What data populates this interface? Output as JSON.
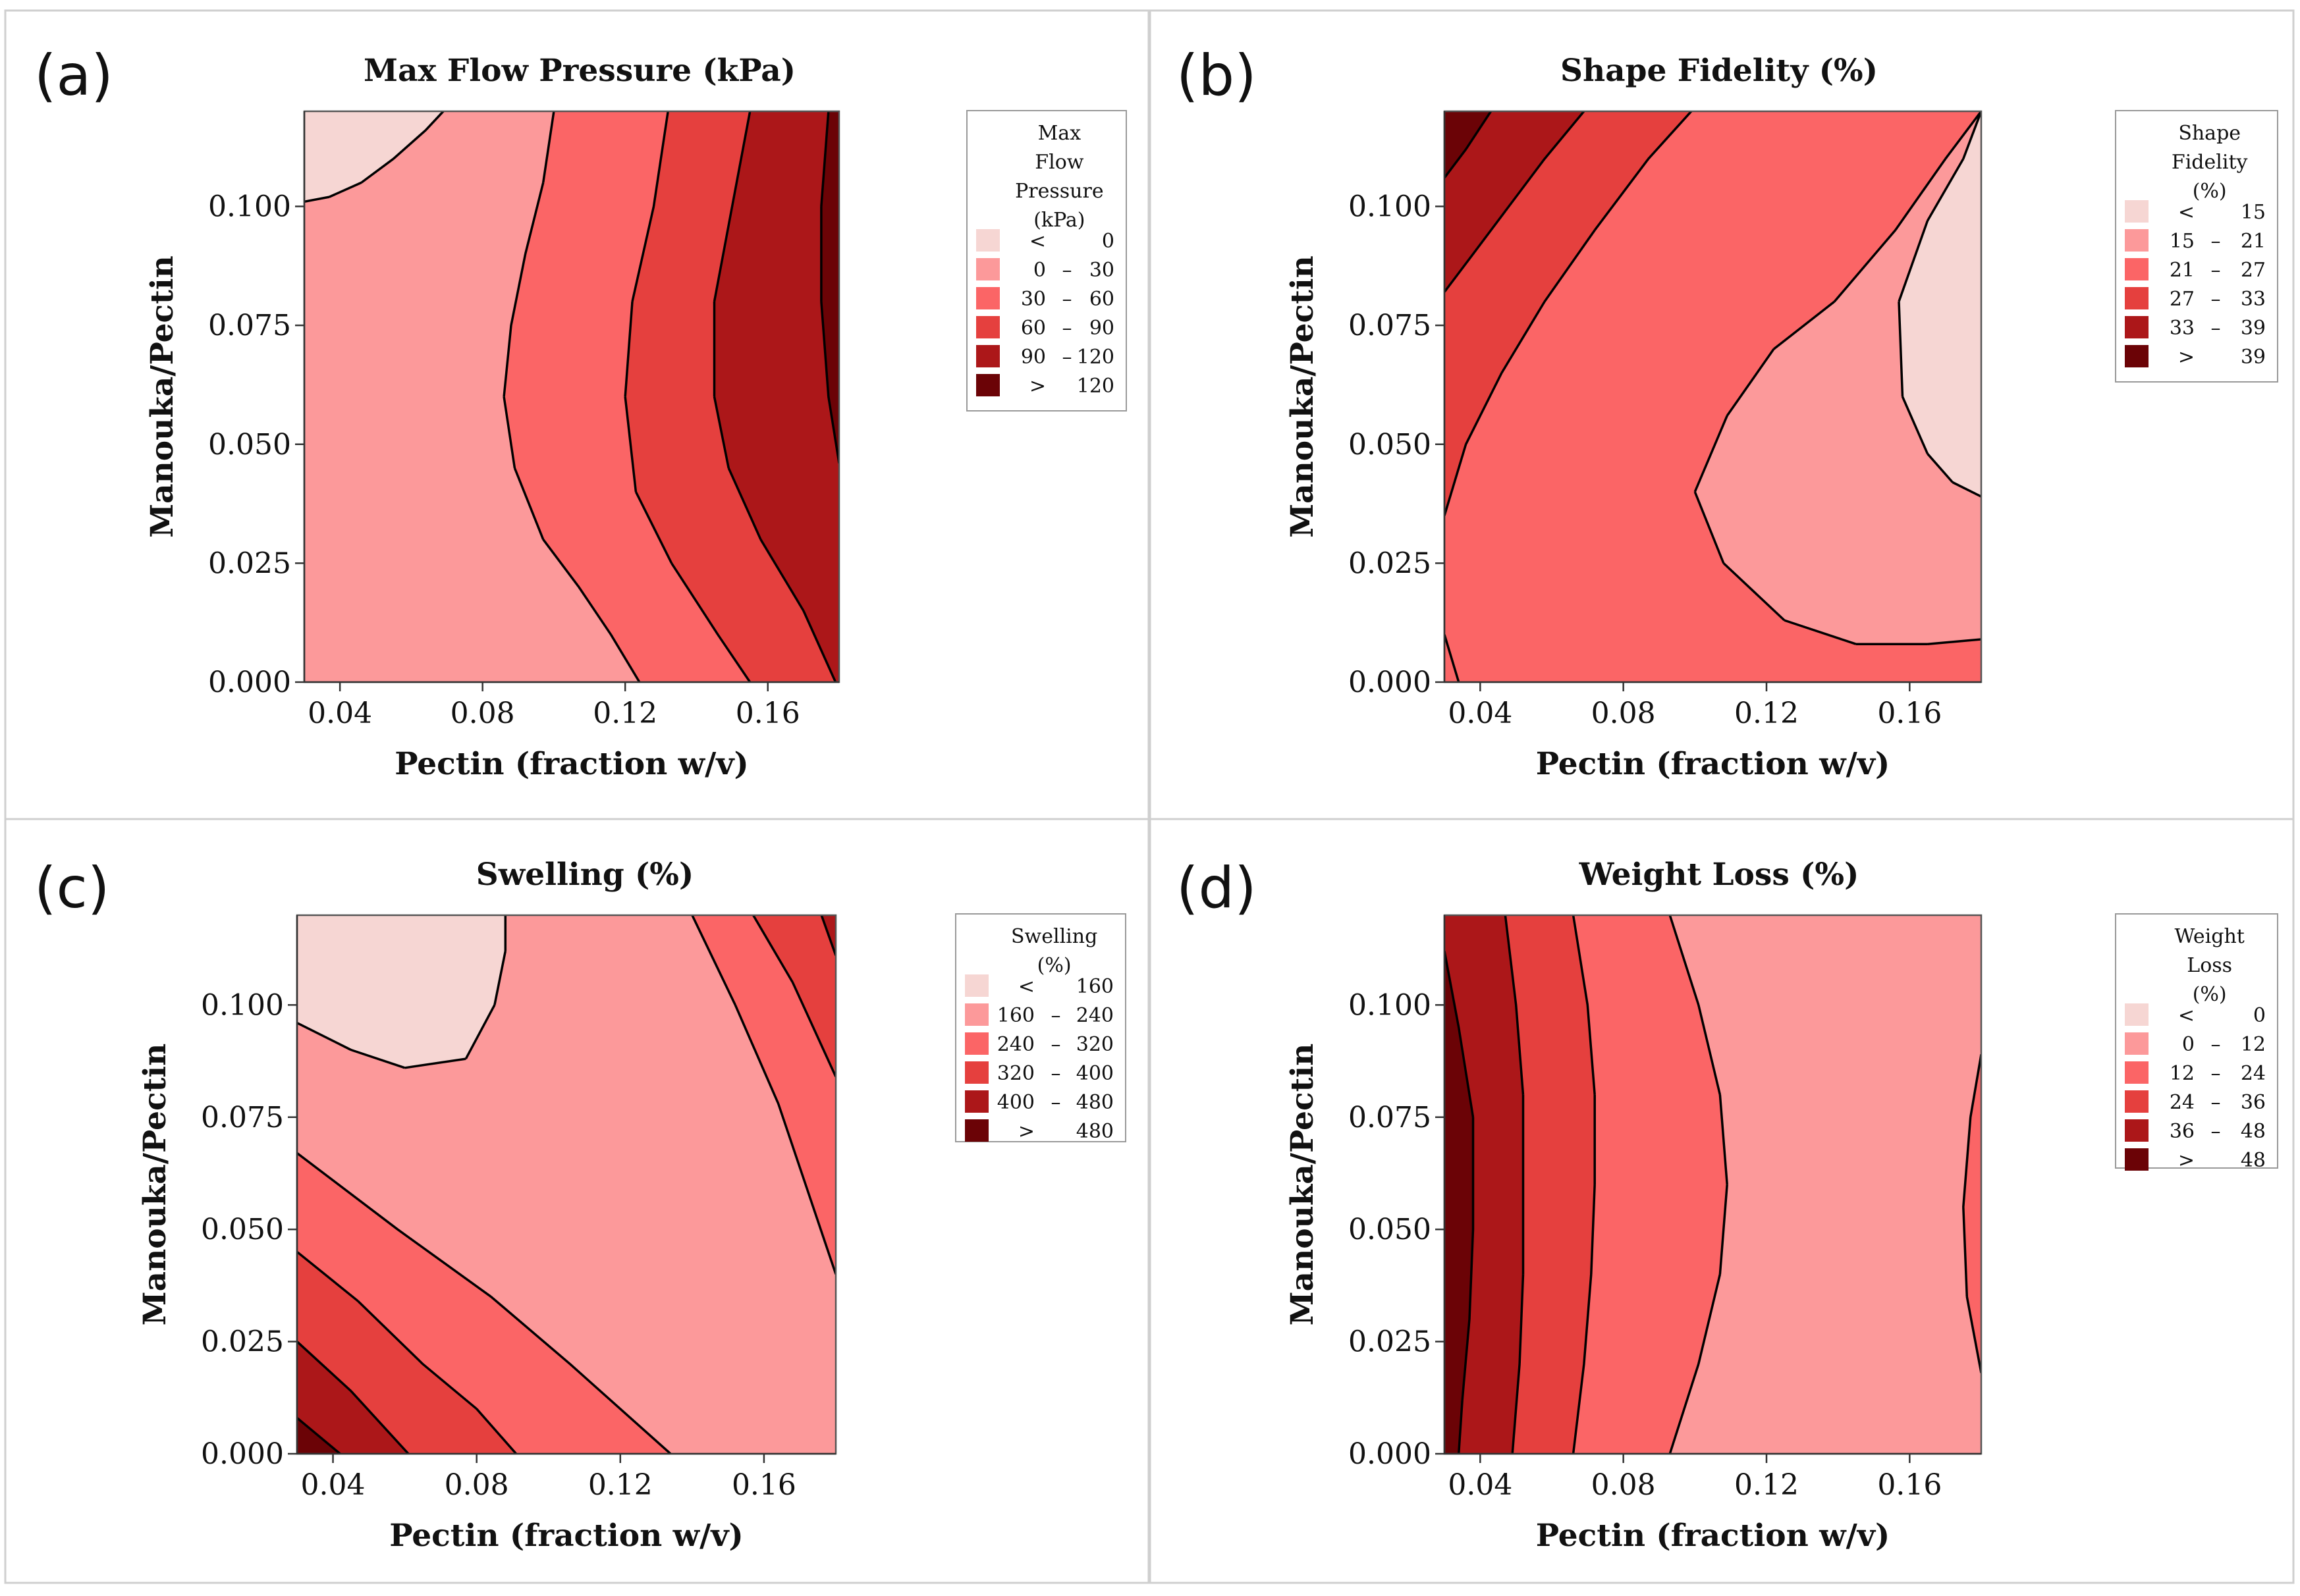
{
  "colors": {
    "level1": "#f6d6d3",
    "level2": "#fc999a",
    "level3": "#fb6566",
    "level4": "#e5403e",
    "level5": "#ac1719",
    "level6": "#6b0306",
    "panel_border": "#cfcfcf"
  },
  "chart_data": [
    {
      "panel": "(a)",
      "type": "contour",
      "title": "Max Flow Pressure  (kPa)",
      "xlabel": "Pectin (fraction w/v)",
      "ylabel": "Manouka/Pectin",
      "xlim": [
        0.03,
        0.18
      ],
      "ylim": [
        0.0,
        0.12
      ],
      "xticks": [
        "0.04",
        "0.08",
        "0.12",
        "0.16"
      ],
      "xtick_values": [
        0.04,
        0.08,
        0.12,
        0.16
      ],
      "yticks": [
        "0.000",
        "0.025",
        "0.050",
        "0.075",
        "0.100"
      ],
      "ytick_values": [
        0.0,
        0.025,
        0.05,
        0.075,
        0.1
      ],
      "legend": {
        "title": [
          "Max",
          "Flow",
          "Pressure",
          "(kPa)"
        ],
        "entries": [
          {
            "lo": "<",
            "hi": "0"
          },
          {
            "lo": "0",
            "dash": "–",
            "hi": "30"
          },
          {
            "lo": "30",
            "dash": "–",
            "hi": "60"
          },
          {
            "lo": "60",
            "dash": "–",
            "hi": "90"
          },
          {
            "lo": "90",
            "dash": "–",
            "hi": "120"
          },
          {
            "lo": ">",
            "hi": "120"
          }
        ]
      },
      "base_level": 2,
      "regions": [
        {
          "level": 1,
          "points": [
            [
              0.03,
              0.12
            ],
            [
              0.03,
              0.101
            ],
            [
              0.037,
              0.102
            ],
            [
              0.046,
              0.105
            ],
            [
              0.055,
              0.11
            ],
            [
              0.064,
              0.116
            ],
            [
              0.069,
              0.12
            ]
          ]
        },
        {
          "level": 3,
          "points": [
            [
              0.1,
              0.12
            ],
            [
              0.097,
              0.105
            ],
            [
              0.092,
              0.09
            ],
            [
              0.088,
              0.075
            ],
            [
              0.086,
              0.06
            ],
            [
              0.089,
              0.045
            ],
            [
              0.097,
              0.03
            ],
            [
              0.107,
              0.02
            ],
            [
              0.116,
              0.01
            ],
            [
              0.124,
              0.0
            ],
            [
              0.18,
              0.0
            ],
            [
              0.18,
              0.12
            ]
          ]
        },
        {
          "level": 4,
          "points": [
            [
              0.132,
              0.12
            ],
            [
              0.128,
              0.1
            ],
            [
              0.122,
              0.08
            ],
            [
              0.12,
              0.06
            ],
            [
              0.123,
              0.04
            ],
            [
              0.133,
              0.025
            ],
            [
              0.146,
              0.01
            ],
            [
              0.155,
              0.0
            ],
            [
              0.18,
              0.0
            ],
            [
              0.18,
              0.12
            ]
          ]
        },
        {
          "level": 5,
          "points": [
            [
              0.155,
              0.12
            ],
            [
              0.15,
              0.1
            ],
            [
              0.145,
              0.08
            ],
            [
              0.145,
              0.06
            ],
            [
              0.149,
              0.045
            ],
            [
              0.158,
              0.03
            ],
            [
              0.17,
              0.015
            ],
            [
              0.179,
              0.0
            ],
            [
              0.18,
              0.0
            ],
            [
              0.18,
              0.12
            ]
          ]
        },
        {
          "level": 6,
          "points": [
            [
              0.177,
              0.12
            ],
            [
              0.175,
              0.1
            ],
            [
              0.175,
              0.08
            ],
            [
              0.177,
              0.06
            ],
            [
              0.18,
              0.046
            ],
            [
              0.18,
              0.12
            ]
          ]
        }
      ]
    },
    {
      "panel": "(b)",
      "type": "contour",
      "title": "Shape Fidelity (%)",
      "xlabel": "Pectin (fraction w/v)",
      "ylabel": "Manouka/Pectin",
      "xlim": [
        0.03,
        0.18
      ],
      "ylim": [
        0.0,
        0.12
      ],
      "xticks": [
        "0.04",
        "0.08",
        "0.12",
        "0.16"
      ],
      "xtick_values": [
        0.04,
        0.08,
        0.12,
        0.16
      ],
      "yticks": [
        "0.000",
        "0.025",
        "0.050",
        "0.075",
        "0.100"
      ],
      "ytick_values": [
        0.0,
        0.025,
        0.05,
        0.075,
        0.1
      ],
      "legend": {
        "title": [
          "Shape",
          "Fidelity",
          "(%)"
        ],
        "entries": [
          {
            "lo": "<",
            "hi": "15"
          },
          {
            "lo": "15",
            "dash": "–",
            "hi": "21"
          },
          {
            "lo": "21",
            "dash": "–",
            "hi": "27"
          },
          {
            "lo": "27",
            "dash": "–",
            "hi": "33"
          },
          {
            "lo": "33",
            "dash": "–",
            "hi": "39"
          },
          {
            "lo": ">",
            "hi": "39"
          }
        ]
      },
      "base_level": 3,
      "regions": [
        {
          "level": 4,
          "points": [
            [
              0.03,
              0.035
            ],
            [
              0.036,
              0.05
            ],
            [
              0.046,
              0.065
            ],
            [
              0.058,
              0.08
            ],
            [
              0.072,
              0.095
            ],
            [
              0.087,
              0.11
            ],
            [
              0.099,
              0.12
            ],
            [
              0.03,
              0.12
            ]
          ]
        },
        {
          "level": 5,
          "points": [
            [
              0.03,
              0.082
            ],
            [
              0.038,
              0.09
            ],
            [
              0.048,
              0.1
            ],
            [
              0.058,
              0.11
            ],
            [
              0.069,
              0.12
            ],
            [
              0.03,
              0.12
            ]
          ]
        },
        {
          "level": 6,
          "points": [
            [
              0.03,
              0.106
            ],
            [
              0.036,
              0.112
            ],
            [
              0.043,
              0.12
            ],
            [
              0.03,
              0.12
            ]
          ]
        },
        {
          "level": 3,
          "points": [
            [
              0.03,
              0.01
            ],
            [
              0.034,
              0.0
            ],
            [
              0.03,
              0.0
            ]
          ]
        },
        {
          "level": 2,
          "points": [
            [
              0.18,
              0.12
            ],
            [
              0.17,
              0.11
            ],
            [
              0.156,
              0.095
            ],
            [
              0.139,
              0.08
            ],
            [
              0.122,
              0.07
            ],
            [
              0.109,
              0.056
            ],
            [
              0.1,
              0.04
            ],
            [
              0.108,
              0.025
            ],
            [
              0.125,
              0.013
            ],
            [
              0.145,
              0.008
            ],
            [
              0.165,
              0.008
            ],
            [
              0.18,
              0.009
            ]
          ]
        },
        {
          "level": 1,
          "points": [
            [
              0.18,
              0.12
            ],
            [
              0.175,
              0.11
            ],
            [
              0.165,
              0.097
            ],
            [
              0.157,
              0.08
            ],
            [
              0.158,
              0.06
            ],
            [
              0.165,
              0.048
            ],
            [
              0.172,
              0.042
            ],
            [
              0.18,
              0.039
            ]
          ]
        }
      ]
    },
    {
      "panel": "(c)",
      "type": "contour",
      "title": "Swelling (%)",
      "xlabel": "Pectin (fraction w/v)",
      "ylabel": "Manouka/Pectin",
      "xlim": [
        0.03,
        0.18
      ],
      "ylim": [
        0.0,
        0.12
      ],
      "xticks": [
        "0.04",
        "0.08",
        "0.12",
        "0.16"
      ],
      "xtick_values": [
        0.04,
        0.08,
        0.12,
        0.16
      ],
      "yticks": [
        "0.000",
        "0.025",
        "0.050",
        "0.075",
        "0.100"
      ],
      "ytick_values": [
        0.0,
        0.025,
        0.05,
        0.075,
        0.1
      ],
      "legend": {
        "title": [
          "Swelling",
          "(%)"
        ],
        "entries": [
          {
            "lo": "<",
            "hi": "160"
          },
          {
            "lo": "160",
            "dash": "–",
            "hi": "240"
          },
          {
            "lo": "240",
            "dash": "–",
            "hi": "320"
          },
          {
            "lo": "320",
            "dash": "–",
            "hi": "400"
          },
          {
            "lo": "400",
            "dash": "–",
            "hi": "480"
          },
          {
            "lo": ">",
            "hi": "480"
          }
        ]
      },
      "base_level": 2,
      "regions": [
        {
          "level": 1,
          "points": [
            [
              0.03,
              0.12
            ],
            [
              0.03,
              0.096
            ],
            [
              0.045,
              0.09
            ],
            [
              0.06,
              0.086
            ],
            [
              0.077,
              0.088
            ],
            [
              0.085,
              0.1
            ],
            [
              0.088,
              0.112
            ],
            [
              0.088,
              0.12
            ]
          ]
        },
        {
          "level": 3,
          "points": [
            [
              0.03,
              0.067
            ],
            [
              0.058,
              0.05
            ],
            [
              0.084,
              0.035
            ],
            [
              0.106,
              0.02
            ],
            [
              0.134,
              0.0
            ],
            [
              0.03,
              0.0
            ]
          ]
        },
        {
          "level": 4,
          "points": [
            [
              0.03,
              0.045
            ],
            [
              0.047,
              0.034
            ],
            [
              0.065,
              0.02
            ],
            [
              0.08,
              0.01
            ],
            [
              0.091,
              0.0
            ],
            [
              0.03,
              0.0
            ]
          ]
        },
        {
          "level": 5,
          "points": [
            [
              0.03,
              0.025
            ],
            [
              0.045,
              0.014
            ],
            [
              0.061,
              0.0
            ],
            [
              0.03,
              0.0
            ]
          ]
        },
        {
          "level": 6,
          "points": [
            [
              0.03,
              0.008
            ],
            [
              0.042,
              0.0
            ],
            [
              0.03,
              0.0
            ]
          ]
        },
        {
          "level": 3,
          "points": [
            [
              0.14,
              0.12
            ],
            [
              0.152,
              0.1
            ],
            [
              0.164,
              0.078
            ],
            [
              0.18,
              0.04
            ],
            [
              0.18,
              0.12
            ]
          ]
        },
        {
          "level": 4,
          "points": [
            [
              0.157,
              0.12
            ],
            [
              0.168,
              0.105
            ],
            [
              0.18,
              0.084
            ],
            [
              0.18,
              0.12
            ]
          ]
        },
        {
          "level": 5,
          "points": [
            [
              0.176,
              0.12
            ],
            [
              0.18,
              0.111
            ],
            [
              0.18,
              0.12
            ]
          ]
        }
      ]
    },
    {
      "panel": "(d)",
      "type": "contour",
      "title": "Weight Loss (%)",
      "xlabel": "Pectin (fraction w/v)",
      "ylabel": "Manouka/Pectin",
      "xlim": [
        0.03,
        0.18
      ],
      "ylim": [
        0.0,
        0.12
      ],
      "xticks": [
        "0.04",
        "0.08",
        "0.12",
        "0.16"
      ],
      "xtick_values": [
        0.04,
        0.08,
        0.12,
        0.16
      ],
      "yticks": [
        "0.000",
        "0.025",
        "0.050",
        "0.075",
        "0.100"
      ],
      "ytick_values": [
        0.0,
        0.025,
        0.05,
        0.075,
        0.1
      ],
      "legend": {
        "title": [
          "Weight",
          "Loss",
          "(%)"
        ],
        "entries": [
          {
            "lo": "<",
            "hi": "0"
          },
          {
            "lo": "0",
            "dash": "–",
            "hi": "12"
          },
          {
            "lo": "12",
            "dash": "–",
            "hi": "24"
          },
          {
            "lo": "24",
            "dash": "–",
            "hi": "36"
          },
          {
            "lo": "36",
            "dash": "–",
            "hi": "48"
          },
          {
            "lo": ">",
            "hi": "48"
          }
        ]
      },
      "base_level": 2,
      "regions": [
        {
          "level": 3,
          "points": [
            [
              0.03,
              0.12
            ],
            [
              0.093,
              0.12
            ],
            [
              0.101,
              0.1
            ],
            [
              0.107,
              0.08
            ],
            [
              0.109,
              0.06
            ],
            [
              0.107,
              0.04
            ],
            [
              0.101,
              0.02
            ],
            [
              0.093,
              0.0
            ],
            [
              0.03,
              0.0
            ]
          ]
        },
        {
          "level": 4,
          "points": [
            [
              0.03,
              0.12
            ],
            [
              0.066,
              0.12
            ],
            [
              0.07,
              0.1
            ],
            [
              0.072,
              0.08
            ],
            [
              0.072,
              0.06
            ],
            [
              0.071,
              0.04
            ],
            [
              0.069,
              0.02
            ],
            [
              0.066,
              0.0
            ],
            [
              0.03,
              0.0
            ]
          ]
        },
        {
          "level": 5,
          "points": [
            [
              0.03,
              0.12
            ],
            [
              0.047,
              0.12
            ],
            [
              0.05,
              0.1
            ],
            [
              0.052,
              0.08
            ],
            [
              0.052,
              0.06
            ],
            [
              0.052,
              0.04
            ],
            [
              0.051,
              0.02
            ],
            [
              0.049,
              0.0
            ],
            [
              0.03,
              0.0
            ]
          ]
        },
        {
          "level": 6,
          "points": [
            [
              0.03,
              0.112
            ],
            [
              0.034,
              0.095
            ],
            [
              0.038,
              0.075
            ],
            [
              0.038,
              0.05
            ],
            [
              0.037,
              0.03
            ],
            [
              0.035,
              0.012
            ],
            [
              0.034,
              0.0
            ],
            [
              0.03,
              0.0
            ]
          ]
        },
        {
          "level": 3,
          "points": [
            [
              0.18,
              0.089
            ],
            [
              0.177,
              0.075
            ],
            [
              0.175,
              0.055
            ],
            [
              0.176,
              0.035
            ],
            [
              0.18,
              0.018
            ]
          ]
        }
      ]
    }
  ]
}
